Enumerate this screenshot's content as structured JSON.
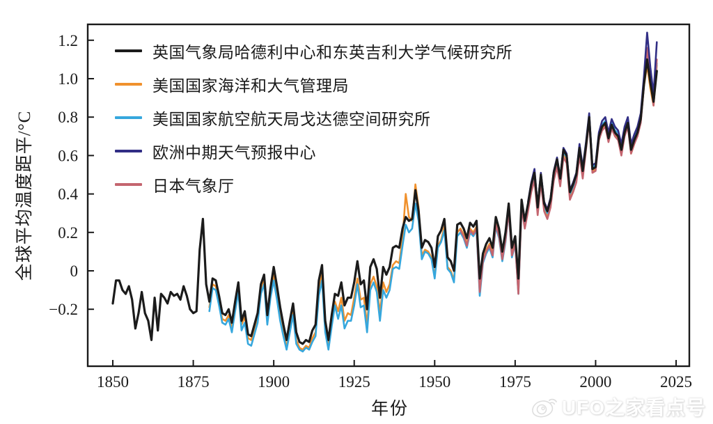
{
  "figure": {
    "background": "#ffffff",
    "y_axis_title": "全球平均温度距平/°C",
    "x_axis_title": "年份",
    "watermark_text": "UFO之家看点号"
  },
  "chart_data": {
    "type": "line",
    "title": "",
    "xlabel": "年份",
    "ylabel": "全球平均温度距平/°C",
    "axis_color": "#1a1a1a",
    "grid": false,
    "legend_position": "top-left-inside",
    "xlim": [
      1842,
      2029
    ],
    "ylim": [
      -0.5,
      1.28
    ],
    "xticks": [
      "1850",
      "1875",
      "1900",
      "1925",
      "1950",
      "1975",
      "2000",
      "2025"
    ],
    "yticks": [
      {
        "value": -0.2,
        "label": "−0.2"
      },
      {
        "value": 0.0,
        "label": "0"
      },
      {
        "value": 0.2,
        "label": "0.2"
      },
      {
        "value": 0.4,
        "label": "0.4"
      },
      {
        "value": 0.6,
        "label": "0.6"
      },
      {
        "value": 0.8,
        "label": "0.8"
      },
      {
        "value": 1.0,
        "label": "1.0"
      },
      {
        "value": 1.2,
        "label": "1.2"
      }
    ],
    "draw_order": [
      "noaa",
      "nasa-giss",
      "jma",
      "ecmwf",
      "hadcrut"
    ],
    "series": [
      {
        "id": "hadcrut",
        "label": "英国气象局哈德利中心和东英吉利大学气候研究所",
        "color": "#1b1b1b",
        "line_width": 3.2,
        "start_year": 1850,
        "end_year": 2019,
        "values": [
          -0.17,
          -0.05,
          -0.05,
          -0.1,
          -0.12,
          -0.08,
          -0.15,
          -0.3,
          -0.22,
          -0.11,
          -0.22,
          -0.26,
          -0.36,
          -0.14,
          -0.31,
          -0.12,
          -0.14,
          -0.17,
          -0.11,
          -0.13,
          -0.12,
          -0.15,
          -0.08,
          -0.13,
          -0.2,
          -0.22,
          -0.21,
          0.11,
          0.27,
          -0.07,
          -0.16,
          -0.04,
          -0.05,
          -0.13,
          -0.22,
          -0.23,
          -0.2,
          -0.27,
          -0.16,
          -0.06,
          -0.26,
          -0.21,
          -0.33,
          -0.34,
          -0.28,
          -0.22,
          -0.07,
          -0.02,
          -0.23,
          -0.09,
          0.02,
          -0.08,
          -0.19,
          -0.28,
          -0.36,
          -0.26,
          -0.17,
          -0.32,
          -0.37,
          -0.38,
          -0.36,
          -0.37,
          -0.31,
          -0.28,
          -0.05,
          0.03,
          -0.26,
          -0.36,
          -0.23,
          -0.12,
          -0.13,
          -0.06,
          -0.18,
          -0.14,
          -0.14,
          -0.06,
          0.05,
          -0.07,
          -0.05,
          -0.2,
          0.02,
          0.06,
          0.01,
          -0.14,
          0.02,
          -0.02,
          0.02,
          0.12,
          0.13,
          0.12,
          0.22,
          0.28,
          0.26,
          0.27,
          0.42,
          0.31,
          0.12,
          0.16,
          0.15,
          0.12,
          0.02,
          0.18,
          0.21,
          0.27,
          0.07,
          0.05,
          0.0,
          0.24,
          0.25,
          0.22,
          0.17,
          0.25,
          0.23,
          0.26,
          -0.04,
          0.09,
          0.14,
          0.17,
          0.12,
          0.28,
          0.22,
          0.1,
          0.2,
          0.35,
          0.12,
          0.18,
          -0.04,
          0.37,
          0.26,
          0.35,
          0.45,
          0.51,
          0.33,
          0.5,
          0.35,
          0.31,
          0.37,
          0.51,
          0.58,
          0.48,
          0.63,
          0.6,
          0.41,
          0.45,
          0.5,
          0.64,
          0.52,
          0.65,
          0.8,
          0.53,
          0.54,
          0.7,
          0.75,
          0.77,
          0.69,
          0.76,
          0.72,
          0.7,
          0.63,
          0.72,
          0.77,
          0.63,
          0.68,
          0.72,
          0.79,
          0.97,
          1.1,
          0.98,
          0.88,
          1.04
        ]
      },
      {
        "id": "noaa",
        "label": "美国国家海洋和大气管理局",
        "color": "#f0912d",
        "line_width": 2.6,
        "start_year": 1880,
        "end_year": 2019,
        "values": [
          -0.19,
          -0.07,
          -0.08,
          -0.16,
          -0.25,
          -0.26,
          -0.23,
          -0.3,
          -0.19,
          -0.09,
          -0.28,
          -0.24,
          -0.35,
          -0.36,
          -0.3,
          -0.24,
          -0.09,
          -0.04,
          -0.25,
          -0.11,
          -0.02,
          -0.12,
          -0.23,
          -0.32,
          -0.4,
          -0.3,
          -0.21,
          -0.36,
          -0.4,
          -0.41,
          -0.39,
          -0.4,
          -0.35,
          -0.32,
          -0.1,
          -0.02,
          -0.3,
          -0.39,
          -0.27,
          -0.16,
          -0.21,
          -0.14,
          -0.26,
          -0.22,
          -0.23,
          -0.14,
          -0.04,
          -0.15,
          -0.14,
          -0.28,
          -0.07,
          -0.03,
          -0.08,
          -0.22,
          -0.06,
          -0.11,
          -0.07,
          0.03,
          0.05,
          0.04,
          0.17,
          0.4,
          0.28,
          0.26,
          0.45,
          0.33,
          0.08,
          0.11,
          0.1,
          0.07,
          -0.03,
          0.13,
          0.16,
          0.23,
          0.02,
          0.0,
          -0.05,
          0.2,
          0.22,
          0.19,
          0.14,
          0.22,
          0.2,
          0.23,
          -0.1,
          0.05,
          0.11,
          0.14,
          0.09,
          0.25,
          0.19,
          0.07,
          0.17,
          0.32,
          0.09,
          0.15,
          -0.08,
          0.34,
          0.23,
          0.33,
          0.43,
          0.49,
          0.31,
          0.48,
          0.33,
          0.29,
          0.35,
          0.49,
          0.56,
          0.46,
          0.61,
          0.58,
          0.39,
          0.43,
          0.48,
          0.62,
          0.5,
          0.64,
          0.79,
          0.52,
          0.53,
          0.69,
          0.74,
          0.76,
          0.68,
          0.75,
          0.71,
          0.69,
          0.61,
          0.71,
          0.76,
          0.61,
          0.66,
          0.71,
          0.78,
          0.96,
          1.07,
          0.95,
          0.86,
          1.07
        ]
      },
      {
        "id": "nasa-giss",
        "label": "美国国家航空航天局戈达德空间研究所",
        "color": "#36a7dd",
        "line_width": 2.6,
        "start_year": 1880,
        "end_year": 2019,
        "values": [
          -0.21,
          -0.09,
          -0.1,
          -0.18,
          -0.27,
          -0.28,
          -0.25,
          -0.32,
          -0.21,
          -0.11,
          -0.31,
          -0.27,
          -0.38,
          -0.39,
          -0.33,
          -0.27,
          -0.12,
          -0.07,
          -0.28,
          -0.14,
          -0.05,
          -0.15,
          -0.26,
          -0.34,
          -0.41,
          -0.32,
          -0.23,
          -0.38,
          -0.41,
          -0.42,
          -0.4,
          -0.41,
          -0.37,
          -0.34,
          -0.13,
          -0.05,
          -0.32,
          -0.41,
          -0.29,
          -0.18,
          -0.25,
          -0.18,
          -0.3,
          -0.26,
          -0.26,
          -0.18,
          -0.07,
          -0.19,
          -0.18,
          -0.32,
          -0.1,
          -0.06,
          -0.11,
          -0.26,
          -0.1,
          -0.14,
          -0.1,
          0.01,
          0.02,
          0.01,
          0.13,
          0.24,
          0.2,
          0.22,
          0.35,
          0.26,
          0.06,
          0.1,
          0.09,
          0.06,
          -0.04,
          0.12,
          0.15,
          0.21,
          0.01,
          -0.01,
          -0.06,
          0.18,
          0.2,
          0.17,
          0.12,
          0.2,
          0.18,
          0.21,
          -0.13,
          0.04,
          0.09,
          0.12,
          0.07,
          0.23,
          0.17,
          0.05,
          0.15,
          0.31,
          0.07,
          0.14,
          -0.12,
          0.34,
          0.24,
          0.33,
          0.44,
          0.5,
          0.32,
          0.49,
          0.34,
          0.3,
          0.36,
          0.5,
          0.57,
          0.47,
          0.62,
          0.59,
          0.4,
          0.44,
          0.49,
          0.63,
          0.51,
          0.66,
          0.81,
          0.54,
          0.55,
          0.71,
          0.76,
          0.78,
          0.7,
          0.78,
          0.73,
          0.72,
          0.64,
          0.74,
          0.79,
          0.65,
          0.7,
          0.74,
          0.81,
          0.99,
          1.12,
          1.02,
          0.9,
          1.08
        ]
      },
      {
        "id": "ecmwf",
        "label": "欧洲中期天气预报中心",
        "color": "#312e85",
        "line_width": 2.6,
        "start_year": 1979,
        "end_year": 2019,
        "values": [
          0.36,
          0.46,
          0.53,
          0.34,
          0.51,
          0.36,
          0.32,
          0.38,
          0.52,
          0.59,
          0.49,
          0.64,
          0.61,
          0.42,
          0.46,
          0.51,
          0.66,
          0.54,
          0.67,
          0.82,
          0.55,
          0.56,
          0.72,
          0.78,
          0.8,
          0.72,
          0.79,
          0.75,
          0.73,
          0.66,
          0.75,
          0.8,
          0.66,
          0.71,
          0.75,
          0.82,
          1.01,
          1.24,
          1.06,
          0.92,
          1.19
        ]
      },
      {
        "id": "jma",
        "label": "日本气象厅",
        "color": "#c4656f",
        "line_width": 2.6,
        "start_year": 1958,
        "end_year": 2019,
        "values": [
          0.21,
          0.18,
          0.13,
          0.21,
          0.19,
          0.22,
          -0.11,
          0.05,
          0.1,
          0.13,
          0.08,
          0.24,
          0.18,
          0.06,
          0.16,
          0.31,
          0.08,
          0.14,
          -0.12,
          0.33,
          0.22,
          0.31,
          0.41,
          0.47,
          0.29,
          0.46,
          0.31,
          0.27,
          0.33,
          0.47,
          0.54,
          0.44,
          0.59,
          0.56,
          0.37,
          0.41,
          0.46,
          0.6,
          0.48,
          0.63,
          0.78,
          0.51,
          0.52,
          0.68,
          0.73,
          0.75,
          0.67,
          0.74,
          0.7,
          0.68,
          0.6,
          0.7,
          0.75,
          0.61,
          0.66,
          0.7,
          0.77,
          0.96,
          1.16,
          1.0,
          0.86,
          1.1
        ]
      }
    ]
  }
}
